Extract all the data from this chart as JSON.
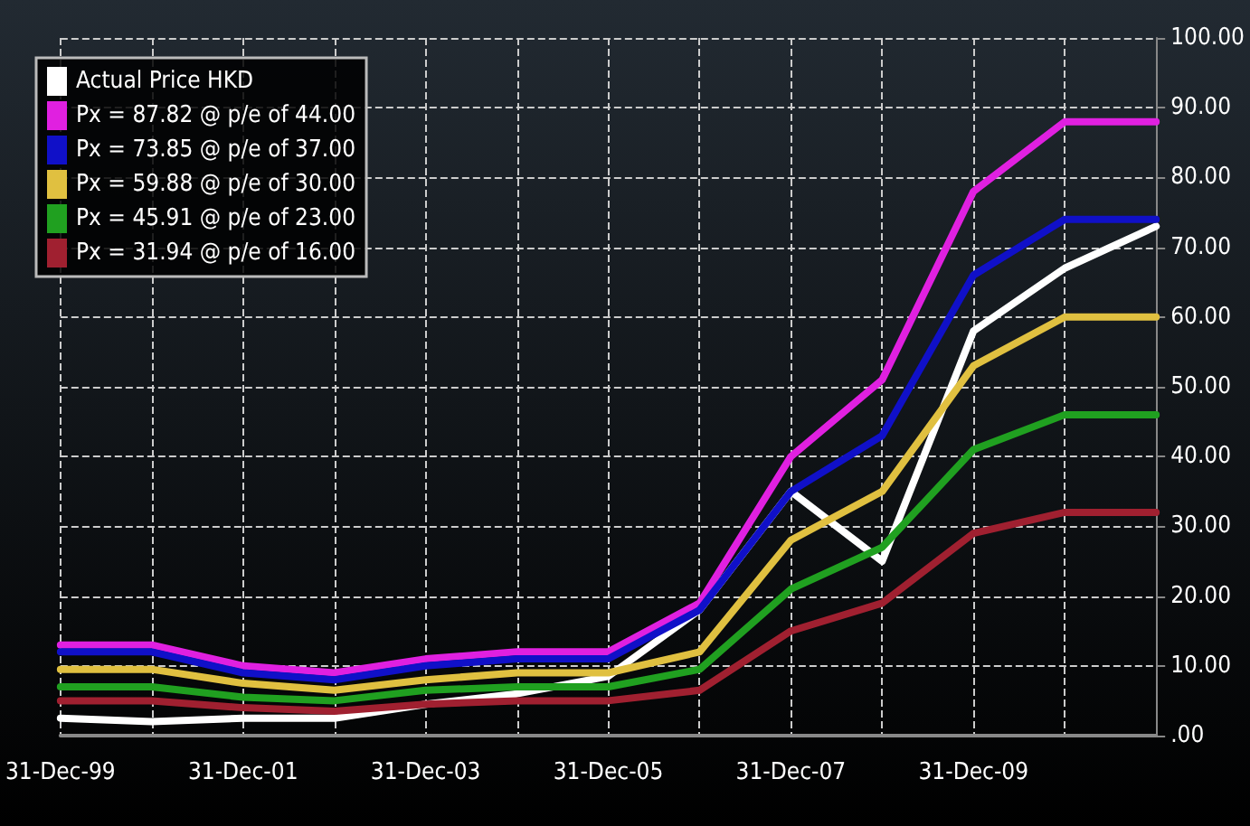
{
  "chart_data": {
    "type": "line",
    "categories": [
      "31-Dec-99",
      null,
      "31-Dec-01",
      null,
      "31-Dec-03",
      null,
      "31-Dec-05",
      null,
      "31-Dec-07",
      null,
      "31-Dec-09",
      null,
      null
    ],
    "series": [
      {
        "name": "Actual Price HKD",
        "color": "#ffffff",
        "values": [
          2.5,
          2,
          2.5,
          2.5,
          4.5,
          6,
          8.5,
          18,
          35,
          25,
          58,
          67,
          73
        ]
      },
      {
        "name": "Px = 87.82 @ p/e of 44.00",
        "color": "#e020e0",
        "values": [
          13,
          13,
          10,
          9,
          11,
          12,
          12,
          19,
          40,
          51,
          78,
          88,
          88
        ]
      },
      {
        "name": "Px = 73.85 @ p/e of 37.00",
        "color": "#1010c8",
        "values": [
          12,
          12,
          9,
          8,
          10,
          11,
          11,
          18,
          35,
          43,
          66,
          74,
          74
        ]
      },
      {
        "name": "Px = 59.88 @ p/e of 30.00",
        "color": "#e0c040",
        "values": [
          9.5,
          9.5,
          7.5,
          6.5,
          8,
          9,
          9,
          12,
          28,
          35,
          53,
          60,
          60
        ]
      },
      {
        "name": "Px = 45.91 @ p/e of 23.00",
        "color": "#20a020",
        "values": [
          7,
          7,
          5.5,
          5,
          6.5,
          7,
          7,
          9.5,
          21,
          27,
          41,
          46,
          46
        ]
      },
      {
        "name": "Px = 31.94 @ p/e of 16.00",
        "color": "#a02030",
        "values": [
          5,
          5,
          4,
          3.5,
          4.5,
          5,
          5,
          6.5,
          15,
          19,
          29,
          32,
          32
        ]
      }
    ],
    "ylim": [
      0,
      100
    ],
    "yticks": [
      {
        "value": 0,
        "label": ".00"
      },
      {
        "value": 10,
        "label": "10.00"
      },
      {
        "value": 20,
        "label": "20.00"
      },
      {
        "value": 30,
        "label": "30.00"
      },
      {
        "value": 40,
        "label": "40.00"
      },
      {
        "value": 50,
        "label": "50.00"
      },
      {
        "value": 60,
        "label": "60.00"
      },
      {
        "value": 70,
        "label": "70.00"
      },
      {
        "value": 80,
        "label": "80.00"
      },
      {
        "value": 90,
        "label": "90.00"
      },
      {
        "value": 100,
        "label": "100.00"
      }
    ],
    "grid": true,
    "legend": "top left",
    "marker": "none",
    "line_style": "solid"
  }
}
